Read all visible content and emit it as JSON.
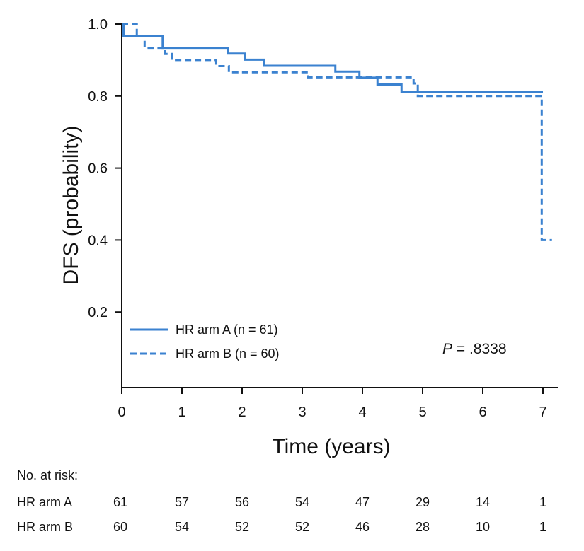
{
  "chart_data": {
    "type": "line",
    "subtype": "kaplan-meier step curve",
    "xlabel": "Time (years)",
    "ylabel": "DFS (probability)",
    "xlim": [
      0,
      7.2
    ],
    "ylim": [
      0,
      1.0
    ],
    "x_ticks": [
      "0",
      "1",
      "2",
      "3",
      "4",
      "5",
      "6",
      "7"
    ],
    "y_ticks": [
      "0.2",
      "0.4",
      "0.6",
      "0.8",
      "1.0"
    ],
    "grid": false,
    "legend_position": "bottom-left",
    "series": [
      {
        "name": "HR arm A (n = 61)",
        "style": "solid",
        "color": "#3b82d0",
        "steps": [
          [
            0,
            1.0
          ],
          [
            0.03,
            0.967
          ],
          [
            0.68,
            0.934
          ],
          [
            1.77,
            0.918
          ],
          [
            2.05,
            0.901
          ],
          [
            2.37,
            0.884
          ],
          [
            3.55,
            0.868
          ],
          [
            3.95,
            0.851
          ],
          [
            4.25,
            0.832
          ],
          [
            4.65,
            0.812
          ],
          [
            7.0,
            0.812
          ]
        ]
      },
      {
        "name": "HR arm B (n = 60)",
        "style": "dashed",
        "color": "#3b82d0",
        "steps": [
          [
            0,
            1.0
          ],
          [
            0.25,
            0.967
          ],
          [
            0.38,
            0.934
          ],
          [
            0.72,
            0.917
          ],
          [
            0.83,
            0.9
          ],
          [
            1.57,
            0.883
          ],
          [
            1.78,
            0.866
          ],
          [
            3.1,
            0.852
          ],
          [
            4.85,
            0.835
          ],
          [
            4.92,
            0.8
          ],
          [
            6.98,
            0.4
          ],
          [
            7.15,
            0.4
          ]
        ]
      }
    ],
    "annotation": {
      "italic": "P",
      "text": " = .8338"
    }
  },
  "risk_table": {
    "title": "No. at risk:",
    "times": [
      0,
      1,
      2,
      3,
      4,
      5,
      6,
      7
    ],
    "rows": [
      {
        "label": "HR arm A",
        "values": [
          "61",
          "57",
          "56",
          "54",
          "47",
          "29",
          "14",
          "1"
        ]
      },
      {
        "label": "HR arm B",
        "values": [
          "60",
          "54",
          "52",
          "52",
          "46",
          "28",
          "10",
          "1"
        ]
      }
    ]
  }
}
